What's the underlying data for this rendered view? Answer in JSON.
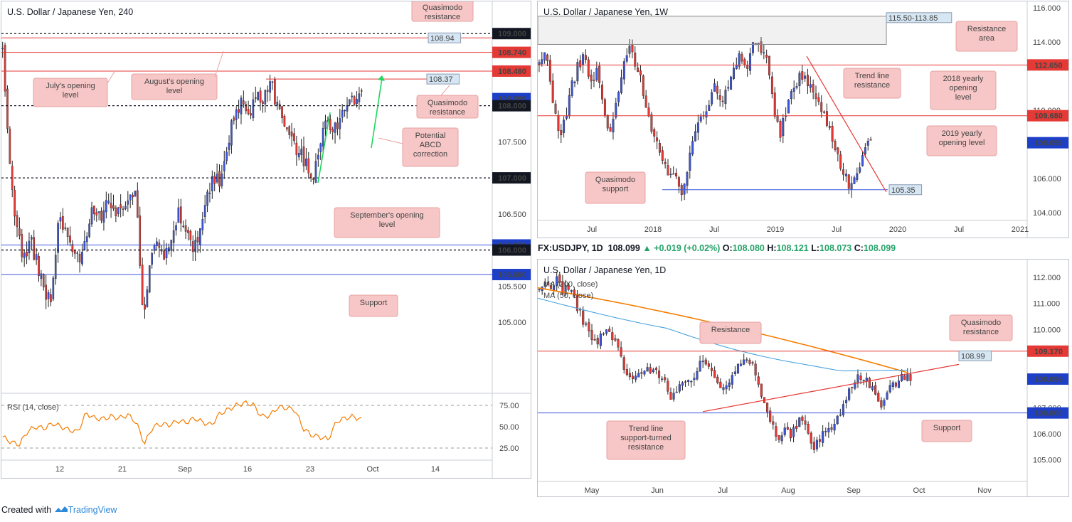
{
  "colors": {
    "bull": "#3d56d9",
    "bear": "#e53935",
    "res_line": "#e53935",
    "sup_line": "#3d56d9",
    "ma200": "#f57c00",
    "ma50": "#4aa3df",
    "rsi": "#f57c00",
    "green": "#1ed760",
    "pill_red": "#e53935",
    "pill_blue": "#1e40c8",
    "pill_black": "#131722",
    "ann_bg": "#f7c6c6"
  },
  "footer": {
    "created": "Created with",
    "brand": "TradingView"
  },
  "chart_data": [
    {
      "id": "h4",
      "type": "candlestick",
      "title": "U.S. Dollar / Japanese Yen, 240",
      "ylim": [
        104.3,
        109.15
      ],
      "y_ticks": [
        "105.000",
        "105.500",
        "106.500",
        "107.500"
      ],
      "x_ticks": [
        "12",
        "21",
        "Sep",
        "16",
        "23",
        "Oct",
        "14"
      ],
      "levels": [
        {
          "value": 109.0,
          "label": "109.000",
          "style": "black_dashed",
          "pill": "black"
        },
        {
          "value": 108.94,
          "label": "108.94",
          "style": "red",
          "pill": "box"
        },
        {
          "value": 108.74,
          "label": "108.740",
          "style": "red",
          "pill": "red"
        },
        {
          "value": 108.48,
          "label": "108.480",
          "style": "red",
          "pill": "red"
        },
        {
          "value": 108.37,
          "label": "108.37",
          "style": "red_short",
          "pill": "box"
        },
        {
          "value": 108.099,
          "label": "108.099",
          "style": "none",
          "pill": "blue"
        },
        {
          "value": 108.0,
          "label": "108.000",
          "style": "black_dashed",
          "pill": "black"
        },
        {
          "value": 107.0,
          "label": "107.000",
          "style": "black_dashed",
          "pill": "black"
        },
        {
          "value": 106.07,
          "label": "106.070",
          "style": "blue",
          "pill": "blue"
        },
        {
          "value": 106.0,
          "label": "106.000",
          "style": "black_dashed",
          "pill": "black"
        },
        {
          "value": 105.66,
          "label": "105.660",
          "style": "blue",
          "pill": "blue"
        }
      ],
      "annotations": [
        "Quasimodo resistance",
        "July's opening level",
        "August's opening level",
        "Quasimodo resistance",
        "Potential ABCD correction",
        "September's opening level",
        "Support"
      ],
      "close_path": [
        108.7,
        107.2,
        106.3,
        105.9,
        106.1,
        105.8,
        105.4,
        105.3,
        106.5,
        106.2,
        106.0,
        105.8,
        106.3,
        106.6,
        106.5,
        106.7,
        106.4,
        106.6,
        106.8,
        106.7,
        105.0,
        106.0,
        106.2,
        105.9,
        106.1,
        106.5,
        106.3,
        106.0,
        106.3,
        106.7,
        107.0,
        106.9,
        107.5,
        107.9,
        108.1,
        107.8,
        108.2,
        108.1,
        108.4,
        108.0,
        107.8,
        107.5,
        107.4,
        107.2,
        107.0,
        107.5,
        107.8,
        107.6,
        107.9,
        108.1,
        108.0,
        108.1
      ],
      "rsi": {
        "label": "RSI (14, close)",
        "levels": [
          75,
          50,
          25
        ],
        "lines": [
          "75.00",
          "50.00",
          "25.00"
        ],
        "ylim": [
          15,
          85
        ],
        "values": [
          38,
          32,
          29,
          45,
          50,
          48,
          54,
          50,
          46,
          44,
          66,
          60,
          59,
          62,
          60,
          64,
          55,
          30,
          50,
          53,
          52,
          57,
          55,
          60,
          55,
          52,
          65,
          70,
          75,
          78,
          76,
          62,
          63,
          73,
          72,
          70,
          48,
          40,
          38,
          35,
          56,
          60,
          62,
          58
        ]
      }
    },
    {
      "id": "w1",
      "type": "candlestick",
      "title": "U.S. Dollar / Japanese Yen, 1W",
      "ylim": [
        103.8,
        116.2
      ],
      "y_ticks": [
        "116.000",
        "114.000",
        "110.000",
        "106.000",
        "104.000"
      ],
      "x_ticks": [
        "Jul",
        "2018",
        "Jul",
        "2019",
        "Jul",
        "2020",
        "Jul",
        "2021"
      ],
      "levels": [
        {
          "value": 112.65,
          "label": "112.650",
          "style": "red",
          "pill": "red"
        },
        {
          "value": 109.68,
          "label": "109.680",
          "style": "red",
          "pill": "red"
        },
        {
          "value": 108.099,
          "label": "108.099",
          "style": "none",
          "pill": "blue"
        },
        {
          "value": 105.35,
          "label": "105.35",
          "style": "blue_ray",
          "pill": "box"
        }
      ],
      "zone": {
        "label": "115.50-113.85",
        "top": 115.5,
        "bottom": 113.85
      },
      "annotations": [
        "Resistance area",
        "Trend line resistance",
        "2018 yearly opening level",
        "2019 yearly opening level",
        "Quasimodo support"
      ],
      "close_path": [
        112.5,
        113.5,
        111.0,
        108.5,
        109.5,
        111.3,
        112.7,
        113.2,
        111.5,
        112.3,
        109.8,
        108.5,
        110.8,
        112.5,
        113.8,
        112.6,
        111.2,
        109.4,
        108.2,
        107.0,
        105.8,
        106.4,
        105.2,
        106.8,
        108.9,
        109.8,
        110.4,
        111.8,
        110.5,
        111.2,
        112.4,
        113.2,
        112.5,
        114.0,
        113.8,
        113.2,
        110.2,
        108.5,
        109.9,
        111.3,
        111.9,
        112.0,
        111.2,
        110.3,
        109.6,
        108.6,
        107.3,
        106.2,
        105.5,
        106.5,
        107.7,
        108.1
      ]
    },
    {
      "id": "d1",
      "type": "candlestick",
      "title": "U.S. Dollar / Japanese Yen, 1D",
      "ylim": [
        104.5,
        112.3
      ],
      "y_ticks": [
        "112.000",
        "111.000",
        "110.000",
        "107.000",
        "106.000",
        "105.000"
      ],
      "x_ticks": [
        "May",
        "Jun",
        "Jul",
        "Aug",
        "Sep",
        "Oct",
        "Nov"
      ],
      "legend": [
        "MA (200, close)",
        "MA (50, close)"
      ],
      "levels": [
        {
          "value": 109.17,
          "label": "109.170",
          "style": "red",
          "pill": "red"
        },
        {
          "value": 108.99,
          "label": "108.99",
          "style": "none",
          "pill": "box"
        },
        {
          "value": 108.099,
          "label": "108.099",
          "style": "none",
          "pill": "blue"
        },
        {
          "value": 106.8,
          "label": "106.800",
          "style": "blue",
          "pill": "blue"
        }
      ],
      "annotations": [
        "Resistance",
        "Quasimodo resistance",
        "Trend line support-turned resistance",
        "Support"
      ],
      "close_path": [
        111.4,
        111.8,
        111.6,
        112.0,
        111.5,
        111.7,
        111.2,
        110.7,
        110.2,
        109.8,
        109.4,
        109.8,
        110.0,
        109.6,
        109.2,
        108.4,
        108.0,
        108.2,
        108.5,
        108.4,
        108.6,
        108.3,
        108.0,
        107.3,
        107.5,
        107.9,
        108.2,
        108.1,
        108.6,
        108.8,
        108.5,
        108.2,
        107.8,
        108.0,
        108.4,
        108.6,
        108.8,
        108.7,
        108.3,
        107.4,
        106.7,
        106.3,
        105.8,
        106.2,
        105.9,
        106.3,
        106.6,
        106.0,
        105.5,
        105.7,
        106.3,
        106.1,
        106.5,
        106.9,
        107.6,
        108.0,
        108.3,
        108.1,
        107.9,
        107.4,
        107.1,
        107.6,
        107.9,
        108.1,
        108.2,
        108.1
      ]
    }
  ],
  "info_bar": {
    "symbol": "FX:USDJPY, 1D",
    "last": "108.099",
    "change": "+0.019 (+0.02%)",
    "o_label": "O:",
    "o": "108.080",
    "h_label": "H:",
    "h": "108.121",
    "l_label": "L:",
    "l": "108.073",
    "c_label": "C:",
    "c": "108.099"
  }
}
